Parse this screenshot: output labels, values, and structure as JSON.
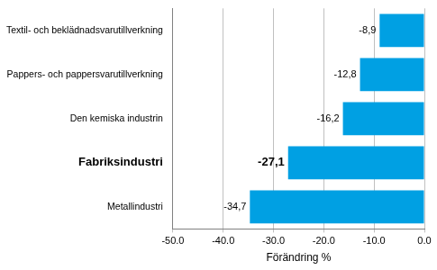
{
  "chart_data": {
    "type": "bar",
    "orientation": "horizontal",
    "categories": [
      "Textil- och beklädnadsvarutillverkning",
      "Pappers- och pappersvarutillverkning",
      "Den kemiska industrin",
      "Fabriksindustri",
      "Metallindustri"
    ],
    "values": [
      -8.9,
      -12.8,
      -16.2,
      -27.1,
      -34.7
    ],
    "value_labels": [
      "-8,9",
      "-12,8",
      "-16,2",
      "-27,1",
      "-34,7"
    ],
    "data_labels": true,
    "color": "#00a0e3",
    "x_label": "Förändring %",
    "xlim": [
      -50,
      0
    ],
    "xticks": [
      {
        "value": -50,
        "label": "-50.0"
      },
      {
        "value": -40,
        "label": "-40.0"
      },
      {
        "value": -30,
        "label": "-30.0"
      },
      {
        "value": -20,
        "label": "-20.0"
      },
      {
        "value": -10,
        "label": "-10.0"
      },
      {
        "value": 0,
        "label": "0.0"
      }
    ],
    "grid": true
  }
}
